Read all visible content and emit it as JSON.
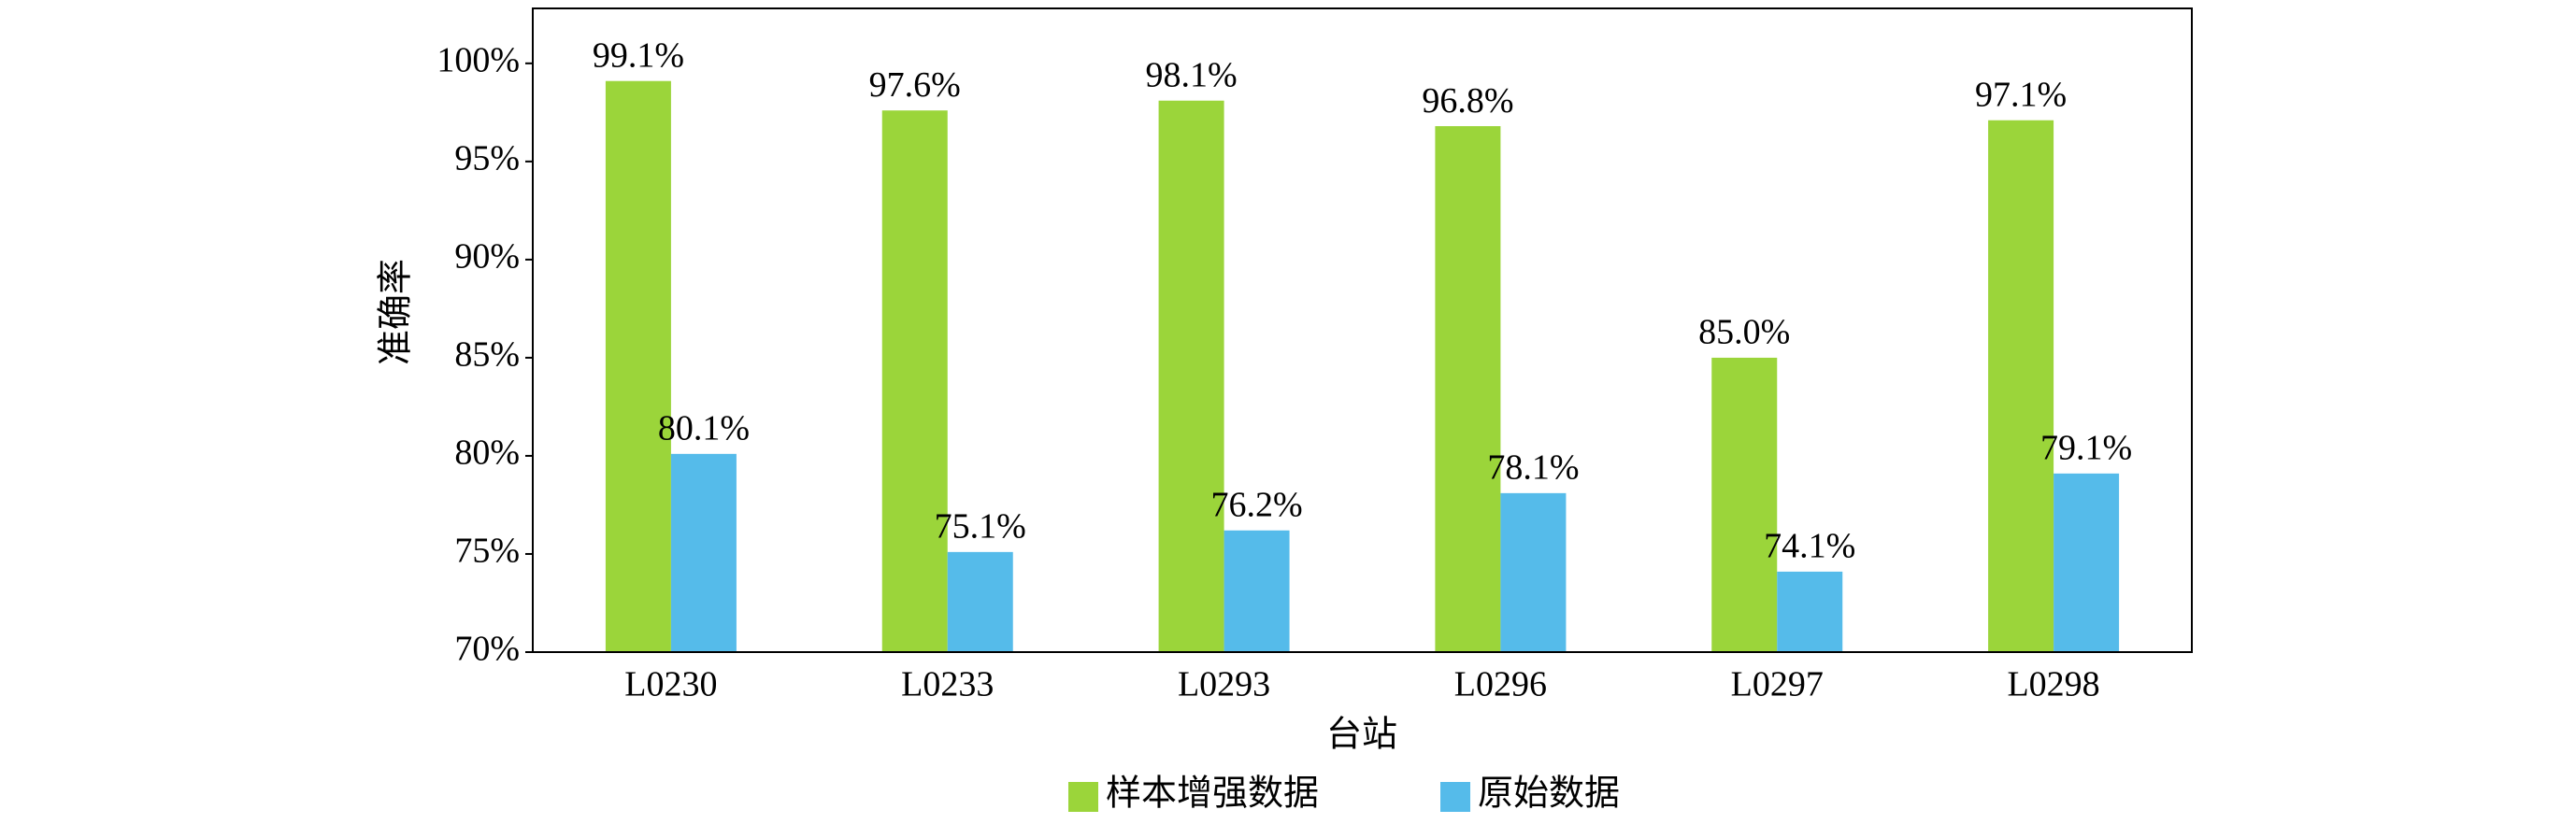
{
  "chart_data": {
    "type": "bar",
    "categories": [
      "L0230",
      "L0233",
      "L0293",
      "L0296",
      "L0297",
      "L0298"
    ],
    "series": [
      {
        "name": "样本增强数据",
        "color": "#9bd53a",
        "values": [
          99.1,
          97.6,
          98.1,
          96.8,
          85.0,
          97.1
        ],
        "value_labels": [
          "99.1%",
          "97.6%",
          "98.1%",
          "96.8%",
          "85.0%",
          "97.1%"
        ]
      },
      {
        "name": "原始数据",
        "color": "#55bbea",
        "values": [
          80.1,
          75.1,
          76.2,
          78.1,
          74.1,
          79.1
        ],
        "value_labels": [
          "80.1%",
          "75.1%",
          "76.2%",
          "78.1%",
          "74.1%",
          "79.1%"
        ]
      }
    ],
    "x_label": "台站",
    "y_label": "准确率",
    "ylim": [
      70,
      102.8
    ],
    "yticks": [
      {
        "value": 70,
        "label": "70%"
      },
      {
        "value": 75,
        "label": "75%"
      },
      {
        "value": 80,
        "label": "80%"
      },
      {
        "value": 85,
        "label": "85%"
      },
      {
        "value": 90,
        "label": "90%"
      },
      {
        "value": 95,
        "label": "95%"
      },
      {
        "value": 100,
        "label": "100%"
      }
    ],
    "legend": "bottom"
  }
}
